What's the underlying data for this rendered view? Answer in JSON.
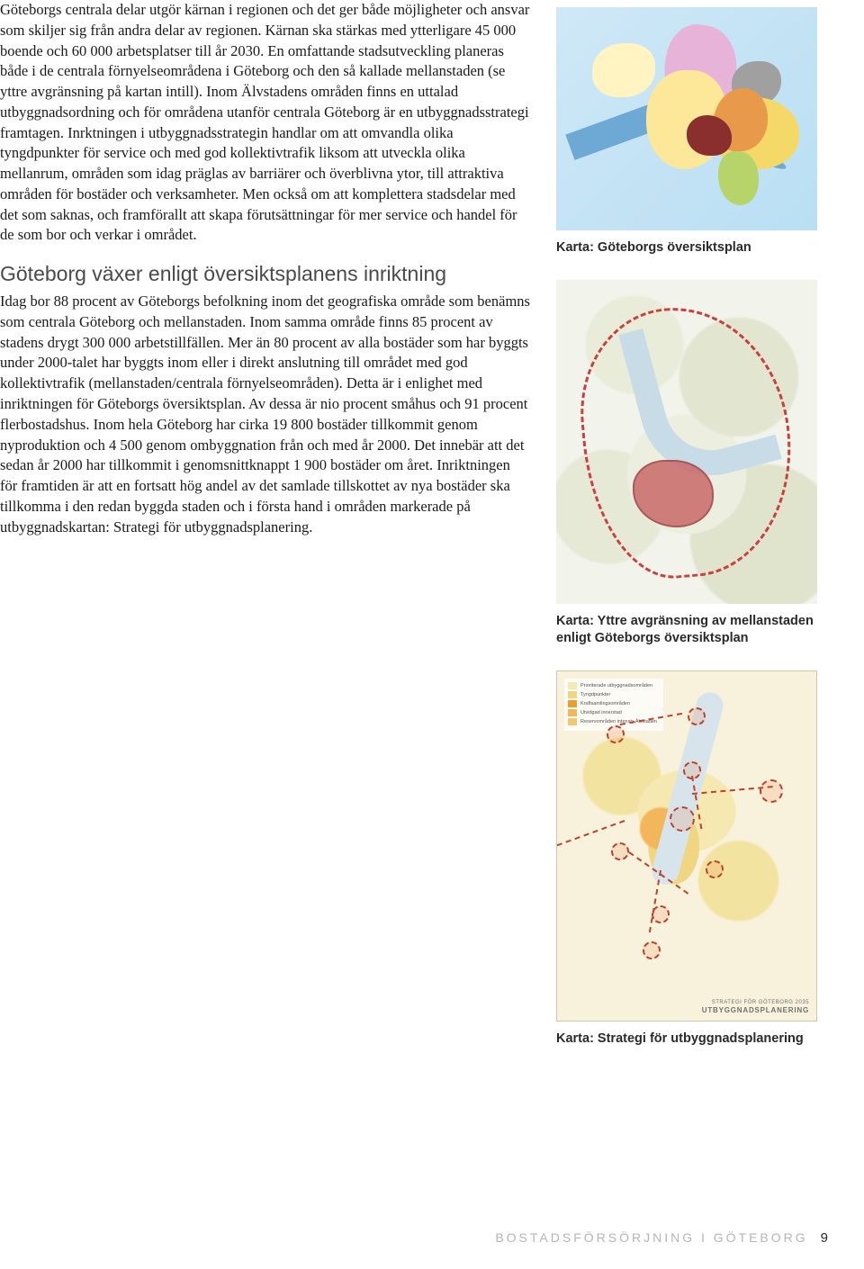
{
  "paragraphs": {
    "p1": "Göteborgs centrala delar utgör kärnan i regionen och det ger både möjligheter och ansvar som skiljer sig från andra delar av regionen. Kärnan ska stärkas med ytterligare 45 000 boende och 60 000 arbetsplatser till år 2030. En omfattande stadsutveckling planeras både i de centrala förnyelseområdena i Göteborg och den så kallade mellanstaden (se yttre avgränsning på kartan intill). Inom Älvstadens områden finns en uttalad utbyggnadsordning och för områdena utanför centrala Göteborg är en utbyggnadsstrategi framtagen. Inrktningen i utbyggnadsstrategin handlar om att omvandla olika tyngdpunkter för service och med god kollektivtrafik liksom att utveckla olika mellanrum, områden som idag präglas av barriärer och överblivna ytor, till attraktiva områden för bostäder och verksamheter. Men också om att komplettera stadsdelar med det som saknas, och framförallt att skapa förutsättningar för mer service och handel för de som bor och verkar i området.",
    "p2": "Idag bor 88 procent av Göteborgs befolkning inom det geografiska område som benämns som centrala Göteborg och mellanstaden. Inom samma område finns 85 procent av stadens drygt 300 000 arbetstillfällen. Mer än 80 procent av alla bostäder som har byggts under 2000-talet har byggts inom eller i direkt anslutning till området med god kollektivtrafik (mellanstaden/centrala förnyelseområden). Detta är i enlighet med inriktningen för Göteborgs översiktsplan. Av dessa är nio procent småhus och 91 procent flerbostadshus. Inom hela Göteborg har cirka 19 800 bostäder tillkommit genom nyproduktion och 4 500 genom ombyggnation från och med år 2000. Det innebär att det sedan år 2000 har tillkommit i genomsnittknappt 1 900 bostäder om året. Inriktningen för framtiden är att en fortsatt hög andel av det samlade tillskottet av nya bostäder ska tillkomma i den redan byggda staden och i första hand i områden markerade på utbyggnadskartan: Strategi för utbyggnadsplanering."
  },
  "heading": "Göteborg växer enligt översiktsplanens inriktning",
  "captions": {
    "map1": "Karta: Göteborgs översiktsplan",
    "map2": "Karta: Yttre avgränsning av mellanstaden enligt Göteborgs översiktsplan",
    "map3": "Karta: Strategi för utbyggnadsplanering"
  },
  "map3": {
    "legend_items": [
      {
        "color": "#f5e8b0",
        "label": "Prioriterade utbyggnadsområden"
      },
      {
        "color": "#f0d680",
        "label": "Tyngdpunkter"
      },
      {
        "color": "#e8a030",
        "label": "Kraftsamlingsområden"
      },
      {
        "color": "#f4b65a",
        "label": "Utvidgad innerstad"
      },
      {
        "color": "#f2c870",
        "label": "Reservområden intensiv Älvstaden"
      }
    ],
    "branding_line1": "STRATEGI FÖR GÖTEBORG 2035",
    "branding_line2": "UTBYGGNADSPLANERING"
  },
  "footer": {
    "title": "BOSTADSFÖRSÖRJNING I GÖTEBORG",
    "page": "9"
  },
  "colors": {
    "body_text": "#1a1a1a",
    "heading": "#4a4a4a",
    "caption": "#2a2a2a",
    "footer_title": "#b5b5b5",
    "dashed_border": "#c94040",
    "node_border": "#b8442a"
  }
}
